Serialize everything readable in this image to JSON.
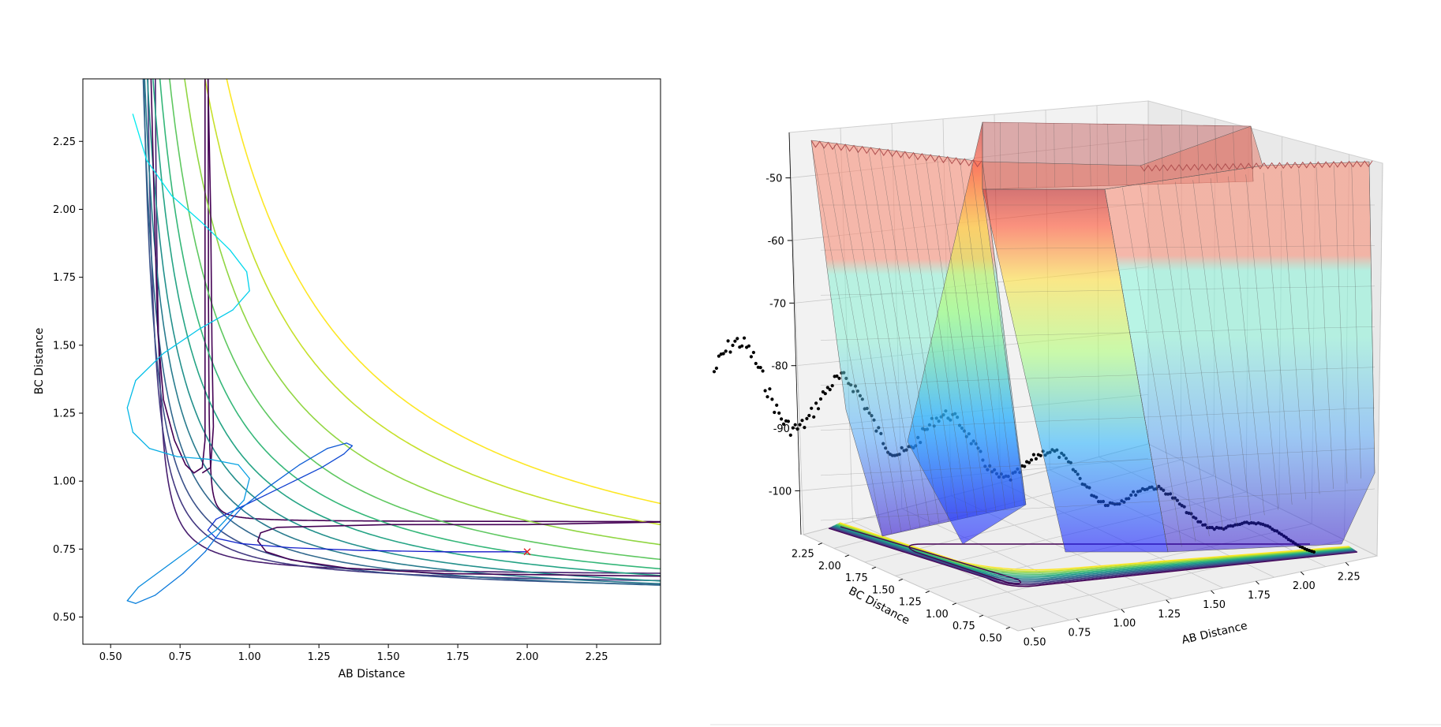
{
  "chart_data": [
    {
      "type": "contour",
      "title": "",
      "xlabel": "AB Distance",
      "ylabel": "BC Distance",
      "xlim": [
        0.4,
        2.48
      ],
      "ylim": [
        0.4,
        2.48
      ],
      "x_ticks": [
        0.5,
        0.75,
        1.0,
        1.25,
        1.5,
        1.75,
        2.0,
        2.25
      ],
      "y_ticks": [
        0.5,
        0.75,
        1.0,
        1.25,
        1.5,
        1.75,
        2.0,
        2.25
      ],
      "x_tick_labels": [
        "0.50",
        "0.75",
        "1.00",
        "1.25",
        "1.50",
        "1.75",
        "2.00",
        "2.25"
      ],
      "y_tick_labels": [
        "0.50",
        "0.75",
        "1.00",
        "1.25",
        "1.50",
        "1.75",
        "2.00",
        "2.25"
      ],
      "contour_levels_asymptote": [
        0.85,
        0.65,
        0.61,
        0.58,
        0.56,
        0.545,
        0.53,
        0.52,
        0.51,
        0.5,
        0.49,
        0.48,
        0.47
      ],
      "contour_levels_curve_c": [
        0.002,
        0.02,
        0.045,
        0.075,
        0.11,
        0.15,
        0.2,
        0.26,
        0.33,
        0.42,
        0.55,
        0.72,
        0.9
      ],
      "colormap": "viridis",
      "trajectory": {
        "x": [
          2.0,
          1.7,
          1.4,
          1.15,
          0.97,
          0.88,
          0.85,
          0.88,
          0.96,
          1.06,
          1.16,
          1.26,
          1.34,
          1.37,
          1.35,
          1.28,
          1.18,
          1.07,
          0.97,
          0.9,
          0.84,
          0.76,
          0.66,
          0.59,
          0.56,
          0.6,
          0.72,
          0.88,
          0.98,
          1.0,
          0.96,
          0.86,
          0.74,
          0.64,
          0.58,
          0.56,
          0.59,
          0.69,
          0.82,
          0.94,
          1.0,
          0.99,
          0.93,
          0.83,
          0.72,
          0.63,
          0.58
        ],
        "y": [
          0.74,
          0.74,
          0.745,
          0.755,
          0.77,
          0.79,
          0.82,
          0.86,
          0.9,
          0.95,
          1.0,
          1.05,
          1.1,
          1.13,
          1.14,
          1.12,
          1.06,
          0.98,
          0.9,
          0.82,
          0.74,
          0.66,
          0.58,
          0.55,
          0.56,
          0.61,
          0.7,
          0.82,
          0.93,
          1.01,
          1.06,
          1.08,
          1.09,
          1.12,
          1.18,
          1.27,
          1.37,
          1.47,
          1.56,
          1.63,
          1.7,
          1.77,
          1.85,
          1.95,
          2.05,
          2.18,
          2.35
        ],
        "end_marker": {
          "x": 2.0,
          "y": 0.74,
          "color": "#e41a1c",
          "symbol": "x"
        }
      }
    },
    {
      "type": "surface3d",
      "title": "",
      "xlabel": "AB Distance",
      "ylabel": "BC Distance",
      "zlabel": "",
      "x_tick_labels": [
        "0.50",
        "0.75",
        "1.00",
        "1.25",
        "1.50",
        "1.75",
        "2.00",
        "2.25"
      ],
      "y_tick_labels": [
        "0.50",
        "0.75",
        "1.00",
        "1.25",
        "1.50",
        "1.75",
        "2.00",
        "2.25"
      ],
      "z_tick_labels": [
        "-50",
        "-60",
        "-70",
        "-80",
        "-90",
        "-100"
      ],
      "z_ticks": [
        -50,
        -60,
        -70,
        -80,
        -90,
        -100
      ],
      "zlim": [
        -107,
        -44
      ],
      "colormap": "jet",
      "surface_alpha": 0.4,
      "scatter_color": "#000000",
      "has_projected_contour": true
    }
  ]
}
